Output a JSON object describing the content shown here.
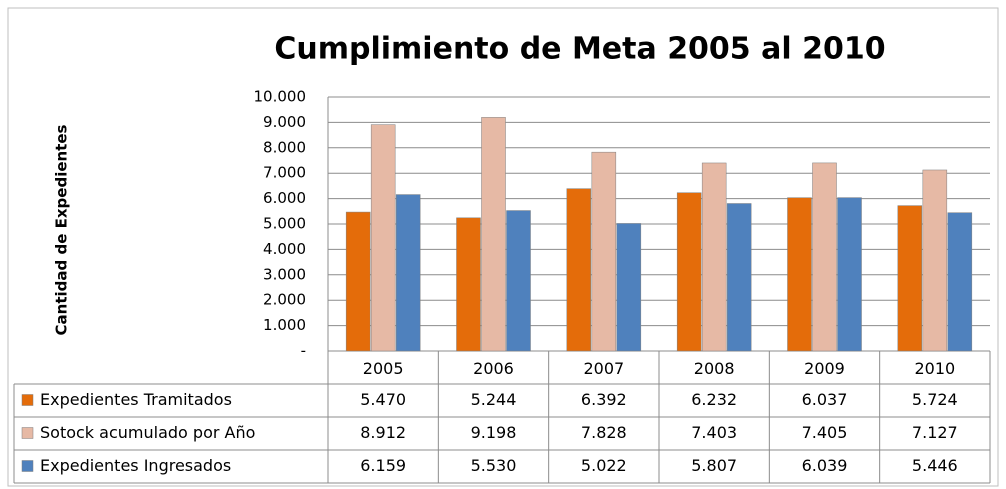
{
  "chart_data": {
    "type": "bar",
    "title": "Cumplimiento de Meta 2005 al 2010",
    "y_label": "Cantidad de Expedientes",
    "categories": [
      "2005",
      "2006",
      "2007",
      "2008",
      "2009",
      "2010"
    ],
    "series": [
      {
        "name": "Expedientes Tramitados",
        "color": "#e46c0a",
        "values": [
          5470,
          5244,
          6392,
          6232,
          6037,
          5724
        ],
        "value_labels": [
          "5.470",
          "5.244",
          "6.392",
          "6.232",
          "6.037",
          "5.724"
        ]
      },
      {
        "name": "Sotock acumulado por Año",
        "color": "#e6b9a5",
        "values": [
          8912,
          9198,
          7828,
          7403,
          7405,
          7127
        ],
        "value_labels": [
          "8.912",
          "9.198",
          "7.828",
          "7.403",
          "7.405",
          "7.127"
        ]
      },
      {
        "name": "Expedientes Ingresados",
        "color": "#4f81bd",
        "values": [
          6159,
          5530,
          5022,
          5807,
          6039,
          5446
        ],
        "value_labels": [
          "6.159",
          "5.530",
          "5.022",
          "5.807",
          "6.039",
          "5.446"
        ]
      }
    ],
    "ylim": [
      0,
      10000
    ],
    "yticks": [
      {
        "value": 0,
        "label": "-"
      },
      {
        "value": 1000,
        "label": "1.000"
      },
      {
        "value": 2000,
        "label": "2.000"
      },
      {
        "value": 3000,
        "label": "3.000"
      },
      {
        "value": 4000,
        "label": "4.000"
      },
      {
        "value": 5000,
        "label": "5.000"
      },
      {
        "value": 6000,
        "label": "6.000"
      },
      {
        "value": 7000,
        "label": "7.000"
      },
      {
        "value": 8000,
        "label": "8.000"
      },
      {
        "value": 9000,
        "label": "9.000"
      },
      {
        "value": 10000,
        "label": "10.000"
      }
    ],
    "grid": true
  }
}
